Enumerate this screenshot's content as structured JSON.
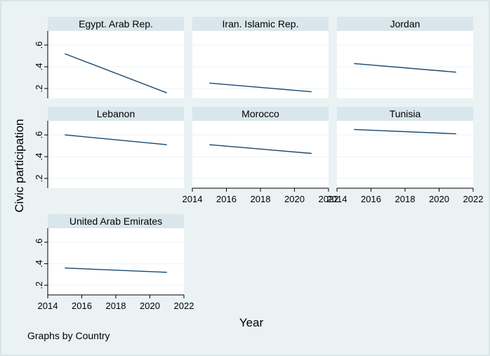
{
  "chart_data": {
    "type": "line",
    "ylabel": "Civic participation",
    "xlabel": "Year",
    "note": "Graphs by Country",
    "x_ticks": [
      "2014",
      "2016",
      "2018",
      "2020",
      "2022"
    ],
    "y_ticks": [
      ".2",
      ".4",
      ".6"
    ],
    "xlim": [
      2014,
      2022
    ],
    "ylim": [
      0.11,
      0.73
    ],
    "grid": true,
    "line_color": "#1a476f",
    "panels": [
      {
        "name": "Egypt. Arab Rep.",
        "x": [
          2015,
          2021
        ],
        "y": [
          0.52,
          0.16
        ]
      },
      {
        "name": "Iran. Islamic Rep.",
        "x": [
          2015,
          2021
        ],
        "y": [
          0.25,
          0.17
        ]
      },
      {
        "name": "Jordan",
        "x": [
          2015,
          2021
        ],
        "y": [
          0.43,
          0.35
        ]
      },
      {
        "name": "Lebanon",
        "x": [
          2015,
          2021
        ],
        "y": [
          0.6,
          0.51
        ]
      },
      {
        "name": "Morocco",
        "x": [
          2015,
          2021
        ],
        "y": [
          0.51,
          0.43
        ]
      },
      {
        "name": "Tunisia",
        "x": [
          2015,
          2021
        ],
        "y": [
          0.65,
          0.61
        ]
      },
      {
        "name": "United Arab Emirates",
        "x": [
          2015,
          2021
        ],
        "y": [
          0.36,
          0.32
        ]
      }
    ]
  }
}
